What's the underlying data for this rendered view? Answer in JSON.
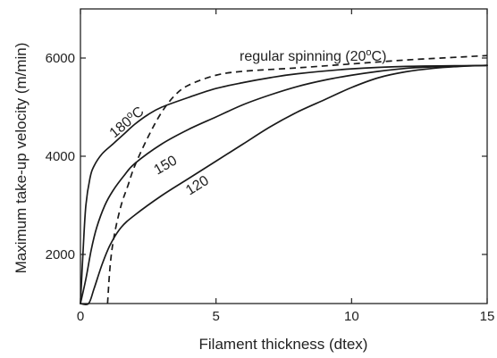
{
  "chart_data": {
    "type": "line",
    "title": "",
    "xlabel": "Filament thickness (dtex)",
    "ylabel": "Maximum take-up velocity (m/min)",
    "xlim": [
      0,
      15
    ],
    "ylim": [
      1000,
      7000
    ],
    "xticks": [
      0,
      5,
      10,
      15
    ],
    "yticks": [
      2000,
      4000,
      6000
    ],
    "xtick_labels": [
      "0",
      "5",
      "10",
      "15"
    ],
    "ytick_labels": [
      "2000",
      "4000",
      "6000"
    ],
    "grid": false,
    "legend": "none",
    "series": [
      {
        "name": "180°C",
        "style": "solid",
        "label_prefix": "180",
        "label_sup": "o",
        "label_suffix": "C",
        "points": [
          [
            0,
            1000
          ],
          [
            0.1,
            2100
          ],
          [
            0.2,
            3000
          ],
          [
            0.35,
            3550
          ],
          [
            0.5,
            3800
          ],
          [
            0.8,
            4050
          ],
          [
            1.2,
            4250
          ],
          [
            1.6,
            4450
          ],
          [
            2,
            4650
          ],
          [
            2.5,
            4850
          ],
          [
            3,
            5000
          ],
          [
            4,
            5200
          ],
          [
            5,
            5380
          ],
          [
            6,
            5500
          ],
          [
            7,
            5600
          ],
          [
            8,
            5680
          ],
          [
            10,
            5780
          ],
          [
            12,
            5830
          ],
          [
            15,
            5850
          ]
        ]
      },
      {
        "name": "150",
        "style": "solid",
        "label_prefix": "150",
        "label_sup": "",
        "label_suffix": "",
        "points": [
          [
            0,
            1000
          ],
          [
            0.2,
            1500
          ],
          [
            0.4,
            2100
          ],
          [
            0.6,
            2550
          ],
          [
            0.9,
            3000
          ],
          [
            1.2,
            3300
          ],
          [
            1.6,
            3600
          ],
          [
            2,
            3850
          ],
          [
            3,
            4250
          ],
          [
            4,
            4550
          ],
          [
            5,
            4800
          ],
          [
            6,
            5050
          ],
          [
            7,
            5250
          ],
          [
            8,
            5420
          ],
          [
            9,
            5550
          ],
          [
            10,
            5650
          ],
          [
            11,
            5730
          ],
          [
            12,
            5790
          ],
          [
            13,
            5820
          ],
          [
            15,
            5850
          ]
        ]
      },
      {
        "name": "120",
        "style": "solid",
        "label_prefix": "120",
        "label_sup": "",
        "label_suffix": "",
        "points": [
          [
            0,
            1000
          ],
          [
            0.3,
            1000
          ],
          [
            0.5,
            1300
          ],
          [
            0.8,
            1800
          ],
          [
            1.1,
            2200
          ],
          [
            1.5,
            2550
          ],
          [
            2,
            2800
          ],
          [
            3,
            3200
          ],
          [
            4,
            3550
          ],
          [
            5,
            3900
          ],
          [
            6,
            4250
          ],
          [
            7,
            4600
          ],
          [
            8,
            4900
          ],
          [
            9,
            5150
          ],
          [
            10,
            5400
          ],
          [
            11,
            5600
          ],
          [
            12,
            5720
          ],
          [
            13,
            5790
          ],
          [
            14,
            5830
          ],
          [
            15,
            5850
          ]
        ]
      },
      {
        "name": "regular spinning (20°C)",
        "style": "dashed",
        "label_prefix": "regular spinning (20",
        "label_sup": "o",
        "label_suffix": "C)",
        "points": [
          [
            1,
            1000
          ],
          [
            1.1,
            1800
          ],
          [
            1.25,
            2400
          ],
          [
            1.5,
            3000
          ],
          [
            1.75,
            3400
          ],
          [
            2,
            3800
          ],
          [
            2.5,
            4400
          ],
          [
            3,
            4900
          ],
          [
            3.5,
            5250
          ],
          [
            4,
            5450
          ],
          [
            5,
            5650
          ],
          [
            6,
            5730
          ],
          [
            8,
            5800
          ],
          [
            10,
            5880
          ],
          [
            12,
            5960
          ],
          [
            14,
            6020
          ],
          [
            15,
            6050
          ]
        ]
      }
    ]
  }
}
